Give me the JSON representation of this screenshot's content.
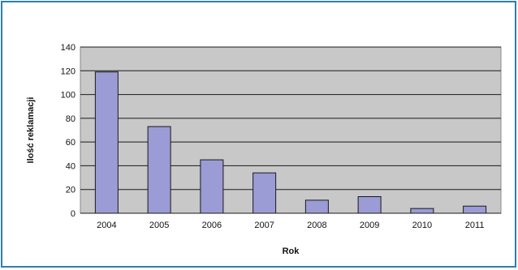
{
  "chart_data": {
    "type": "bar",
    "title": "",
    "xlabel": "Rok",
    "ylabel": "Ilość reklamacji",
    "categories": [
      "2004",
      "2005",
      "2006",
      "2007",
      "2008",
      "2009",
      "2010",
      "2011"
    ],
    "values": [
      119,
      73,
      45,
      34,
      11,
      14,
      4,
      6
    ],
    "ylim": [
      0,
      140
    ],
    "yticks": [
      "0",
      "20",
      "40",
      "60",
      "80",
      "100",
      "120",
      "140"
    ],
    "grid": true,
    "legend": "none",
    "colors": {
      "bar_fill": "#9b9bd6",
      "bar_stroke": "#1a1a1a",
      "plot_background": "#c8c8c8",
      "gridline": "#1a1a1a",
      "frame_border": "#2e7fb0"
    }
  }
}
